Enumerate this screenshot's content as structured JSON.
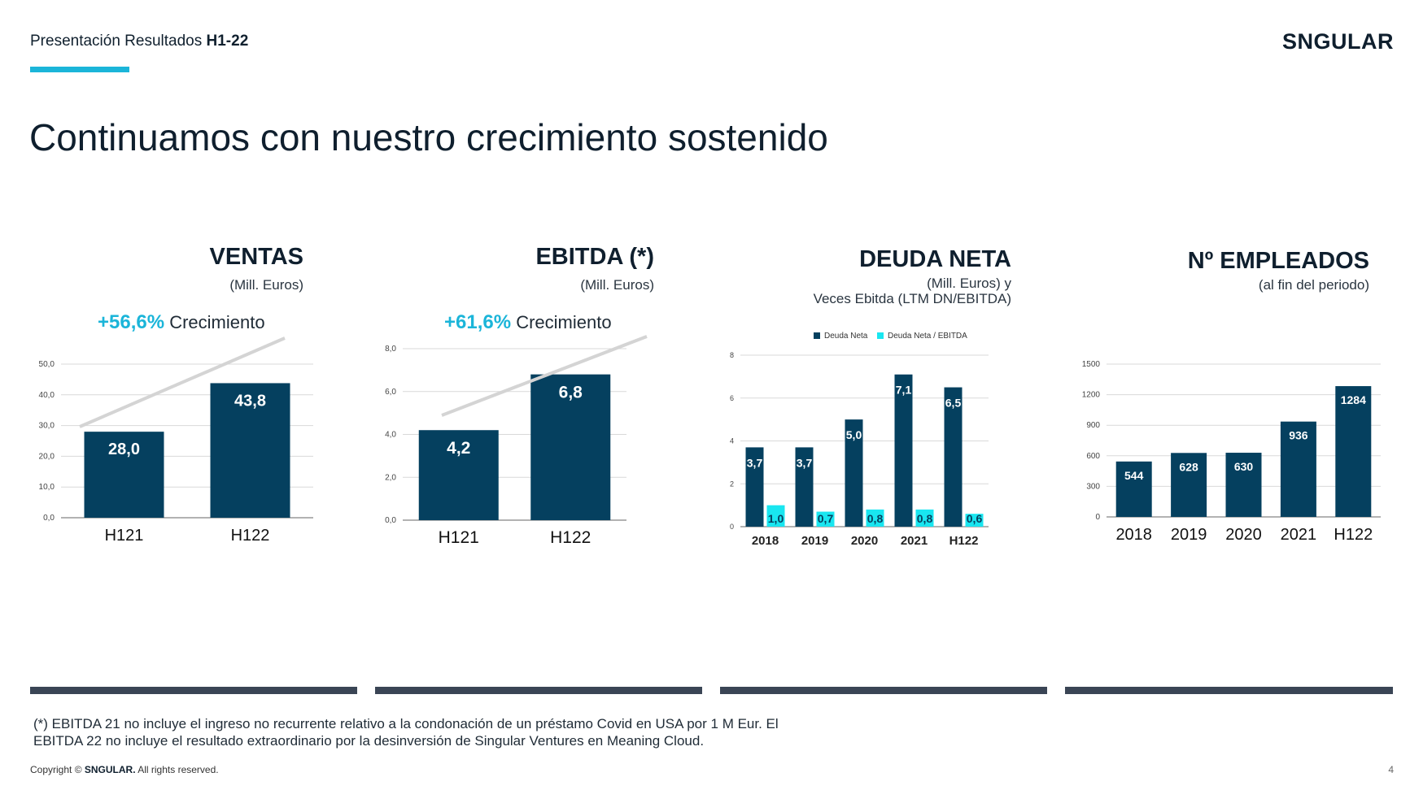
{
  "header": {
    "title_prefix": "Presentación Resultados ",
    "title_bold": "H1-22",
    "logo": "SNGULAR"
  },
  "heading": "Continuamos con nuestro crecimiento sostenido",
  "panels": {
    "ventas": {
      "title": "VENTAS",
      "subtitle": "(Mill. Euros)",
      "growth_pct": "+56,6%",
      "growth_label": " Crecimiento"
    },
    "ebitda": {
      "title": "EBITDA (*)",
      "subtitle": "(Mill. Euros)",
      "growth_pct": "+61,6%",
      "growth_label": " Crecimiento"
    },
    "deuda": {
      "title": "DEUDA NETA",
      "subtitle_line1": "(Mill. Euros) y",
      "subtitle_line2": "Veces Ebitda (LTM  DN/EBITDA)"
    },
    "empleados": {
      "title": "Nº EMPLEADOS",
      "subtitle": "(al fin del periodo)"
    }
  },
  "footnote": {
    "line1": "(*) EBITDA 21 no incluye  el ingreso no recurrente relativo a la condonación de un préstamo Covid en USA por  1 M Eur. El",
    "line2": "EBITDA 22 no incluye el resultado extraordinario por la desinversión de Singular Ventures en  Meaning Cloud."
  },
  "copyright": {
    "prefix": "Copyright © ",
    "brand": "SNGULAR.",
    "suffix": " All rights reserved."
  },
  "page_number": "4",
  "colors": {
    "bar": "#05405f",
    "accent": "#1bb5d9",
    "cyan": "#19e6f0"
  },
  "chart_data": [
    {
      "id": "ventas",
      "type": "bar",
      "categories": [
        "H121",
        "H122"
      ],
      "values": [
        28.0,
        43.8
      ],
      "value_labels": [
        "28,0",
        "43,8"
      ],
      "ylim": [
        0,
        50
      ],
      "yticks": [
        "0,0",
        "10,0",
        "20,0",
        "30,0",
        "40,0",
        "50,0"
      ],
      "grid": true
    },
    {
      "id": "ebitda",
      "type": "bar",
      "categories": [
        "H121",
        "H122"
      ],
      "values": [
        4.2,
        6.8
      ],
      "value_labels": [
        "4,2",
        "6,8"
      ],
      "ylim": [
        0,
        8
      ],
      "yticks": [
        "0,0",
        "2,0",
        "4,0",
        "6,0",
        "8,0"
      ],
      "grid": true
    },
    {
      "id": "deuda",
      "type": "bar",
      "categories": [
        "2018",
        "2019",
        "2020",
        "2021",
        "H122"
      ],
      "series": [
        {
          "name": "Deuda Neta",
          "values": [
            3.7,
            3.7,
            5.0,
            7.1,
            6.5
          ],
          "labels": [
            "3,7",
            "3,7",
            "5,0",
            "7,1",
            "6,5"
          ],
          "color": "#05405f"
        },
        {
          "name": "Deuda Neta / EBITDA",
          "values": [
            1.0,
            0.7,
            0.8,
            0.8,
            0.6
          ],
          "labels": [
            "1,0",
            "0,7",
            "0,8",
            "0,8",
            "0,6"
          ],
          "color": "#19e6f0"
        }
      ],
      "ylim": [
        0,
        8
      ],
      "yticks": [
        "0",
        "2",
        "4",
        "6",
        "8"
      ],
      "legend": "top",
      "grid": true
    },
    {
      "id": "empleados",
      "type": "bar",
      "categories": [
        "2018",
        "2019",
        "2020",
        "2021",
        "H122"
      ],
      "values": [
        544,
        628,
        630,
        936,
        1284
      ],
      "value_labels": [
        "544",
        "628",
        "630",
        "936",
        "1284"
      ],
      "ylim": [
        0,
        1500
      ],
      "yticks": [
        "0",
        "300",
        "600",
        "900",
        "1200",
        "1500"
      ],
      "grid": true
    }
  ]
}
